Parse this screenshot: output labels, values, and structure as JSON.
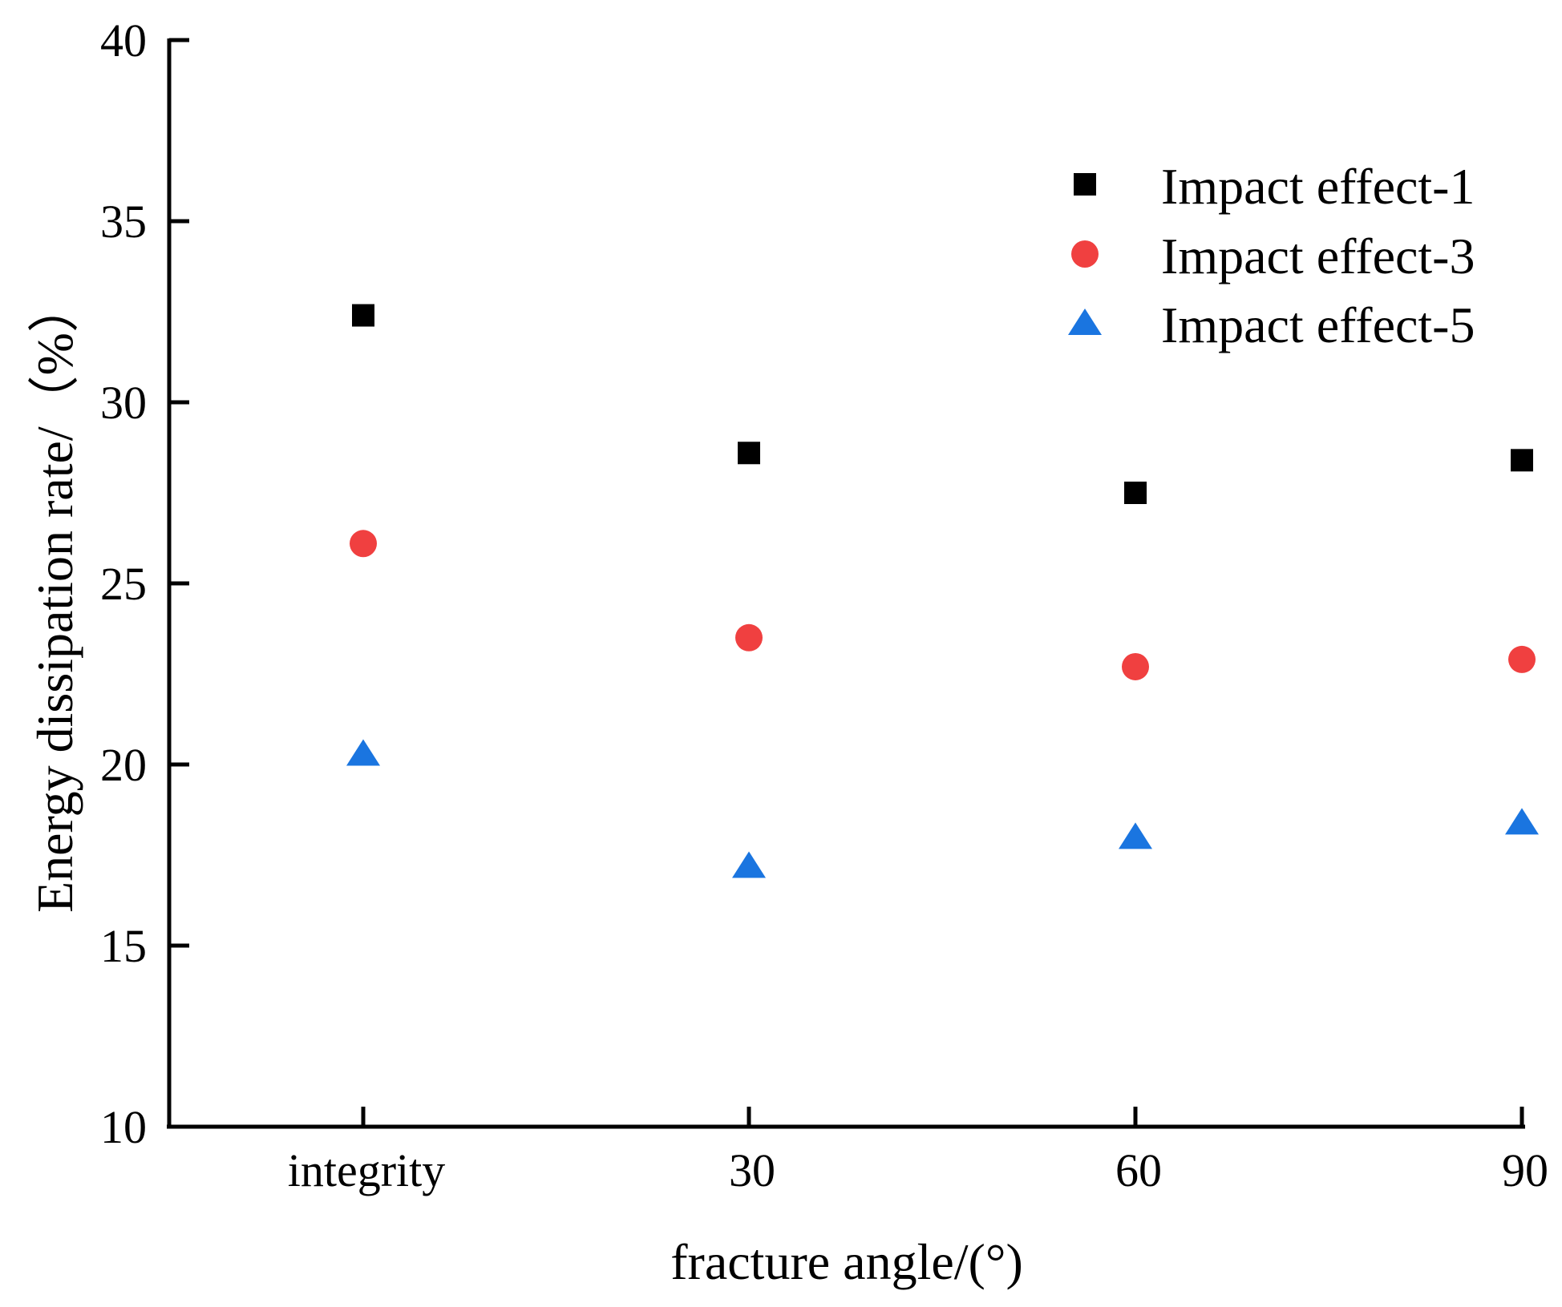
{
  "chart_data": {
    "type": "scatter",
    "title": "",
    "xlabel": "fracture angle/(°)",
    "ylabel": "Energy dissipation rate/（%）",
    "categories": [
      "integrity",
      "30",
      "60",
      "90"
    ],
    "ylim": [
      10,
      40
    ],
    "yticks": [
      10,
      15,
      20,
      25,
      30,
      35,
      40
    ],
    "grid": false,
    "legend_position": "top-right",
    "series": [
      {
        "name": "Impact effect-1",
        "marker": "square",
        "color": "#000000",
        "values": [
          32.4,
          28.6,
          27.5,
          28.4
        ]
      },
      {
        "name": "Impact effect-3",
        "marker": "circle",
        "color": "#f04040",
        "values": [
          26.1,
          23.5,
          22.7,
          22.9
        ]
      },
      {
        "name": "Impact effect-5",
        "marker": "triangle",
        "color": "#1a75e0",
        "values": [
          20.3,
          17.2,
          18.0,
          18.4
        ]
      }
    ]
  }
}
